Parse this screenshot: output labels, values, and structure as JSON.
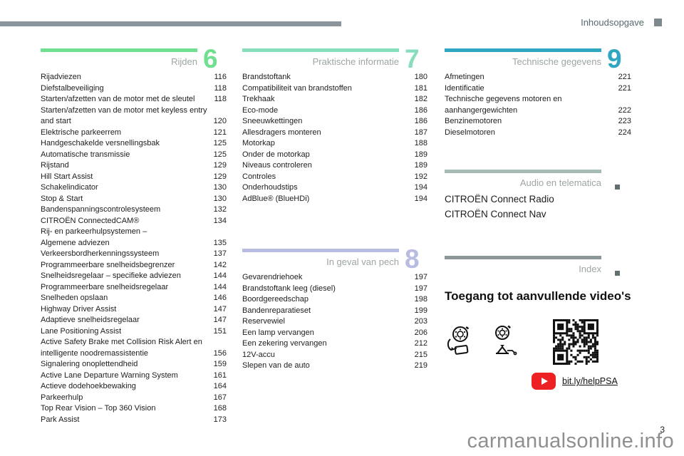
{
  "page": {
    "header_label": "Inhoudsopgave",
    "watermark": "carmanualsonline.info",
    "page_number": "3"
  },
  "sections": [
    {
      "title": "Rijden",
      "number": "6",
      "color": "#70df8f",
      "entries": [
        {
          "label": "Rijadviezen",
          "page": "116"
        },
        {
          "label": "Diefstalbeveiliging",
          "page": "118"
        },
        {
          "label": "Starten/afzetten van de motor met de sleutel",
          "page": "118"
        },
        {
          "label": "Starten/afzetten van de motor met keyless entry\nand start",
          "page": "120"
        },
        {
          "label": "Elektrische parkeerrem",
          "page": "121"
        },
        {
          "label": "Handgeschakelde versnellingsbak",
          "page": "125"
        },
        {
          "label": "Automatische transmissie",
          "page": "125"
        },
        {
          "label": "Rijstand",
          "page": "129"
        },
        {
          "label": "Hill Start Assist",
          "page": "129"
        },
        {
          "label": "Schakelindicator",
          "page": "130"
        },
        {
          "label": "Stop & Start",
          "page": "130"
        },
        {
          "label": "Bandenspanningscontrolesysteem",
          "page": "132"
        },
        {
          "label": "CITROËN ConnectedCAM®",
          "page": "134"
        },
        {
          "label": "Rij- en parkeerhulpsystemen –\nAlgemene adviezen",
          "page": "135"
        },
        {
          "label": "Verkeersbordherkenningssysteem",
          "page": "137"
        },
        {
          "label": "Programmeerbare snelheidsbegrenzer",
          "page": "142"
        },
        {
          "label": "Snelheidsregelaar – specifieke adviezen",
          "page": "144"
        },
        {
          "label": "Programmeerbare snelheidsregelaar",
          "page": "144"
        },
        {
          "label": "Snelheden opslaan",
          "page": "146"
        },
        {
          "label": "Highway Driver Assist",
          "page": "147"
        },
        {
          "label": "Adaptieve snelheidsregelaar",
          "page": "147"
        },
        {
          "label": "Lane Positioning Assist",
          "page": "151"
        },
        {
          "label": "Active Safety Brake met Collision Risk Alert en\nintelligente noodremassistentie",
          "page": "156"
        },
        {
          "label": "Signalering onoplettendheid",
          "page": "159"
        },
        {
          "label": "Active Lane Departure Warning System",
          "page": "161"
        },
        {
          "label": "Actieve dodehoekbewaking",
          "page": "164"
        },
        {
          "label": "Parkeerhulp",
          "page": "167"
        },
        {
          "label": "Top Rear Vision – Top 360 Vision",
          "page": "168"
        },
        {
          "label": "Park Assist",
          "page": "173"
        }
      ]
    },
    {
      "title": "Praktische informatie",
      "number": "7",
      "color": "#88debc",
      "entries": [
        {
          "label": "Brandstoftank",
          "page": "180"
        },
        {
          "label": "Compatibiliteit van brandstoffen",
          "page": "181"
        },
        {
          "label": "Trekhaak",
          "page": "182"
        },
        {
          "label": "Eco-mode",
          "page": "186"
        },
        {
          "label": "Sneeuwkettingen",
          "page": "186"
        },
        {
          "label": "Allesdragers monteren",
          "page": "187"
        },
        {
          "label": "Motorkap",
          "page": "188"
        },
        {
          "label": "Onder de motorkap",
          "page": "189"
        },
        {
          "label": "Niveaus controleren",
          "page": "189"
        },
        {
          "label": "Controles",
          "page": "192"
        },
        {
          "label": "Onderhoudstips",
          "page": "194"
        },
        {
          "label": "AdBlue® (BlueHDi)",
          "page": "194"
        }
      ]
    },
    {
      "title": "In geval van pech",
      "number": "8",
      "color": "#b7bce0",
      "entries": [
        {
          "label": "Gevarendriehoek",
          "page": "197"
        },
        {
          "label": "Brandstoftank leeg (diesel)",
          "page": "197"
        },
        {
          "label": "Boordgereedschap",
          "page": "198"
        },
        {
          "label": "Bandenreparatieset",
          "page": "199"
        },
        {
          "label": "Reservewiel",
          "page": "203"
        },
        {
          "label": "Een lamp vervangen",
          "page": "206"
        },
        {
          "label": "Een zekering vervangen",
          "page": "212"
        },
        {
          "label": "12V-accu",
          "page": "215"
        },
        {
          "label": "Slepen van de auto",
          "page": "219"
        }
      ]
    },
    {
      "title": "Technische gegevens",
      "number": "9",
      "color": "#2fa7c3",
      "entries": [
        {
          "label": "Afmetingen",
          "page": "221"
        },
        {
          "label": "Identificatie",
          "page": "221"
        },
        {
          "label": "Technische gegevens motoren en\naanhangergewichten",
          "page": "222"
        },
        {
          "label": "Benzinemotoren",
          "page": "223"
        },
        {
          "label": "Dieselmotoren",
          "page": "224"
        }
      ]
    },
    {
      "title": "Audio en telematica",
      "color": "#a6bbb1",
      "items": [
        "CITROËN Connect Radio",
        "CITROËN Connect Nav"
      ]
    },
    {
      "title": "Index",
      "color": "#8c979a"
    }
  ],
  "videos": {
    "heading": "Toegang tot aanvullende video's",
    "link_label": "bit.ly/helpPSA"
  }
}
